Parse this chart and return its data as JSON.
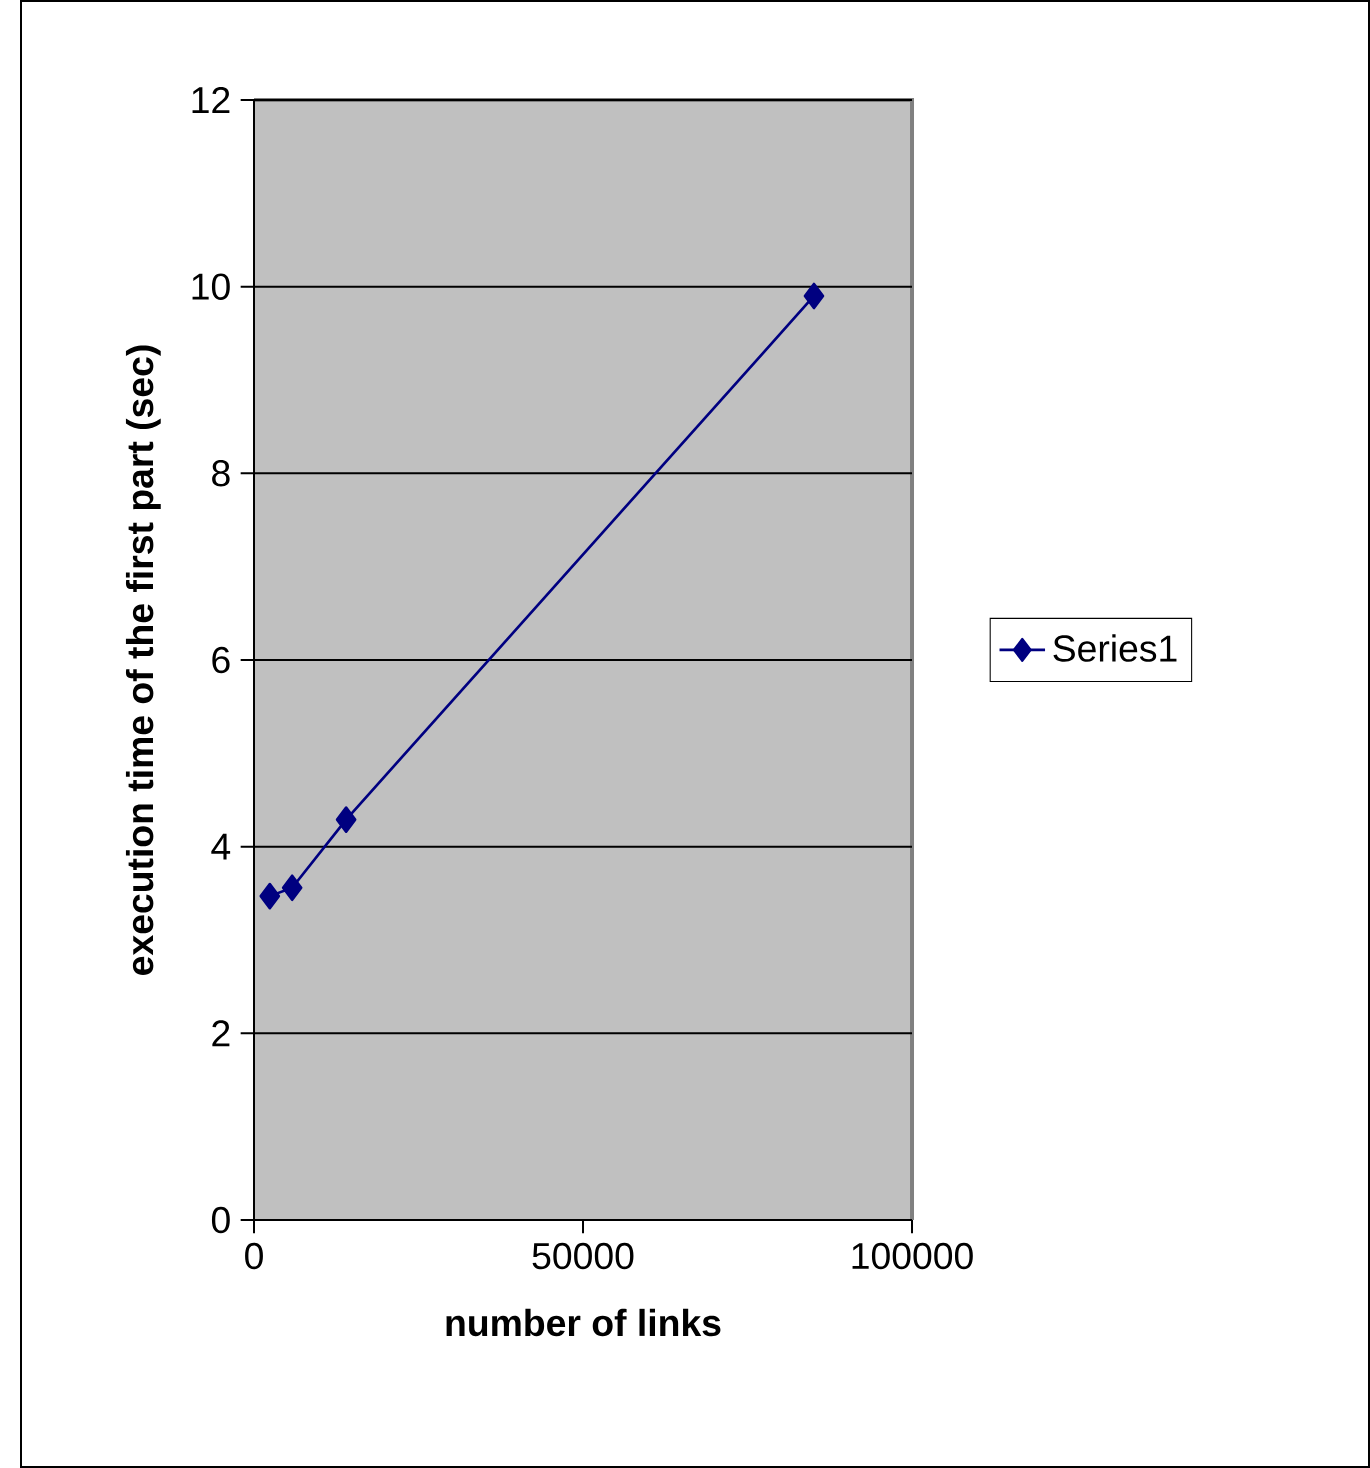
{
  "chart_data": {
    "type": "line",
    "xlabel": "number of links",
    "ylabel": "execution time of the first part (sec)",
    "x": [
      2400,
      5800,
      14000,
      85100
    ],
    "series": [
      {
        "name": "Series1",
        "color": "#000080",
        "values": [
          3.47,
          3.56,
          4.29,
          9.9
        ]
      }
    ],
    "xlim": [
      0,
      100000
    ],
    "xticks": [
      0,
      50000,
      100000
    ],
    "ylim": [
      0,
      12
    ],
    "yticks": [
      0,
      2,
      4,
      6,
      8,
      10,
      12
    ],
    "grid": "y",
    "legend": "right",
    "marker": "diamond",
    "line_style": "solid"
  }
}
